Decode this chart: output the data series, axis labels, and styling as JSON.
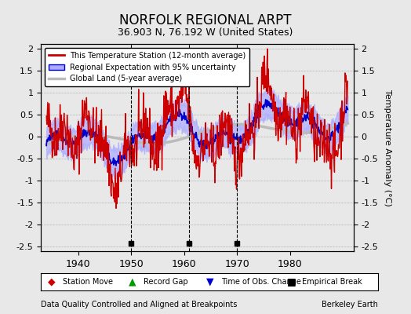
{
  "title": "NORFOLK REGIONAL ARPT",
  "subtitle": "36.903 N, 76.192 W (United States)",
  "ylabel": "Temperature Anomaly (°C)",
  "footer_left": "Data Quality Controlled and Aligned at Breakpoints",
  "footer_right": "Berkeley Earth",
  "xlim": [
    1933,
    1992
  ],
  "ylim": [
    -2.6,
    2.1
  ],
  "yticks": [
    -2.5,
    -2,
    -1.5,
    -1,
    -0.5,
    0,
    0.5,
    1,
    1.5,
    2
  ],
  "xticks": [
    1940,
    1950,
    1960,
    1970,
    1980
  ],
  "empirical_breaks": [
    1950,
    1961,
    1970
  ],
  "bg_color": "#e8e8e8",
  "plot_bg_color": "#e8e8e8",
  "uncertainty_color": "#aaaaff",
  "regional_color": "#0000cc",
  "station_color": "#cc0000",
  "global_color": "#bbbbbb"
}
